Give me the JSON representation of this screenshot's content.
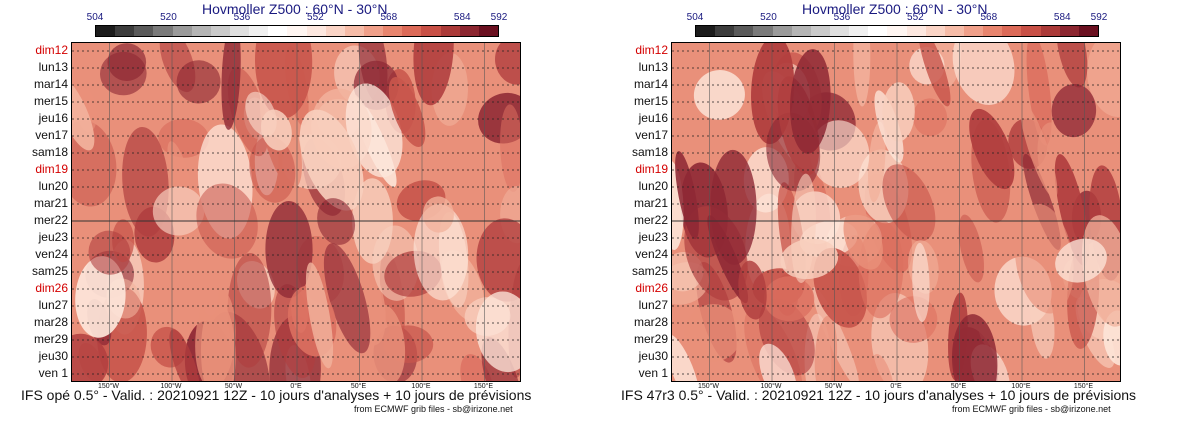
{
  "chart_data": [
    {
      "type": "heatmap",
      "title": "Hovmoller Z500 : 60°N - 30°N",
      "footer": "IFS opé 0.5° - Valid. : 20210921 12Z - 10 jours d'analyses + 10 jours de prévisions",
      "credit": "from ECMWF grib files - sb@irizone.net",
      "model": "IFS opé 0.5°",
      "colorbar_ticks": [
        "504",
        "520",
        "536",
        "552",
        "568",
        "584",
        "592"
      ],
      "x_ticks": [
        "150°W",
        "100°W",
        "50°W",
        "0°E",
        "50°E",
        "100°E",
        "150°E"
      ],
      "x_tick_values": [
        -150,
        -100,
        -50,
        0,
        50,
        100,
        150
      ],
      "xlim": [
        -180,
        180
      ],
      "y_labels": [
        "dim12",
        "lun13",
        "mar14",
        "mer15",
        "jeu16",
        "ven17",
        "sam18",
        "dim19",
        "lun20",
        "mar21",
        "mer22",
        "jeu23",
        "ven24",
        "sam25",
        "dim26",
        "lun27",
        "mar28",
        "mer29",
        "jeu30",
        "ven 1"
      ],
      "analysis_forecast_boundary": "mer22",
      "value_range_dam": [
        504,
        592
      ]
    },
    {
      "type": "heatmap",
      "title": "Hovmoller Z500 : 60°N - 30°N",
      "footer": "IFS 47r3 0.5° - Valid. : 20210921 12Z - 10 jours d'analyses + 10 jours de prévisions",
      "credit": "from ECMWF grib files - sb@irizone.net",
      "model": "IFS 47r3 0.5°",
      "colorbar_ticks": [
        "504",
        "520",
        "536",
        "552",
        "568",
        "584",
        "592"
      ],
      "x_ticks": [
        "150°W",
        "100°W",
        "50°W",
        "0°E",
        "50°E",
        "100°E",
        "150°E"
      ],
      "x_tick_values": [
        -150,
        -100,
        -50,
        0,
        50,
        100,
        150
      ],
      "xlim": [
        -180,
        180
      ],
      "y_labels": [
        "dim12",
        "lun13",
        "mar14",
        "mer15",
        "jeu16",
        "ven17",
        "sam18",
        "dim19",
        "lun20",
        "mar21",
        "mer22",
        "jeu23",
        "ven24",
        "sam25",
        "dim26",
        "lun27",
        "mar28",
        "mer29",
        "jeu30",
        "ven 1"
      ],
      "analysis_forecast_boundary": "mer22",
      "value_range_dam": [
        504,
        592
      ]
    }
  ],
  "colors": {
    "colorbar": [
      "#1c1c1c",
      "#3c3c3c",
      "#5a5a5a",
      "#7a7a7a",
      "#9a9a9a",
      "#b4b4b4",
      "#cacaca",
      "#e0e0e0",
      "#f0f0f0",
      "#ffffff",
      "#fff6f2",
      "#fde8e0",
      "#fad4c6",
      "#f6bca8",
      "#f0a08a",
      "#e8856e",
      "#dc6a58",
      "#c85046",
      "#ab3a38",
      "#8c2630",
      "#6a1020"
    ],
    "field": [
      "#fde6da",
      "#f8cfbe",
      "#f2b29c",
      "#e9907a",
      "#dc7060",
      "#c8564c",
      "#b03e3e",
      "#8e2834"
    ],
    "title": "#1a1a80",
    "sunday": "#d40000"
  }
}
